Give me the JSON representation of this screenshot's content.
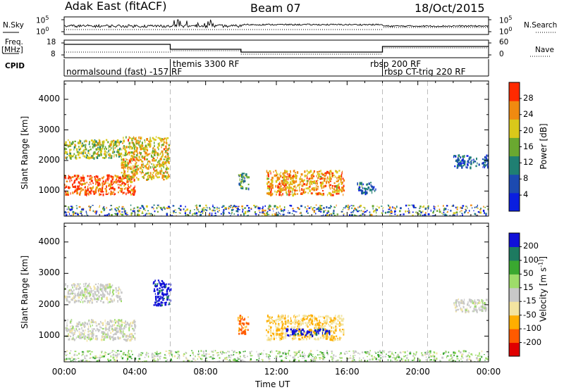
{
  "header": {
    "radar": "Adak East (fitACF)",
    "beam": "Beam 07",
    "date": "18/Oct/2015"
  },
  "aux_labels": {
    "nsky": "N.Sky",
    "nsearch": "N.Search",
    "freq": "Freq.",
    "freq_unit": "[MHz]",
    "nave": "Nave",
    "cpid": "CPID",
    "nsky_top": "10^5",
    "nsky_bottom": "10^0",
    "nsearch_top": "10^5",
    "nsearch_bottom": "10^0",
    "freq_top": "18",
    "freq_bottom": "8",
    "nave_top": "60",
    "nave_bottom": "0"
  },
  "cpid_segments": [
    {
      "label": "normalsound (fast) -157 RF",
      "start": "00:00"
    },
    {
      "label": "themis 3300 RF",
      "start": "06:00"
    },
    {
      "label": "rbsp 200 RF",
      "start": "18:00"
    },
    {
      "label": "rbsp CT-trig 220 RF",
      "start": "18:00"
    }
  ],
  "chart_data": [
    {
      "type": "heatmap",
      "name": "power",
      "xlabel": "",
      "ylabel": "Slant Range [km]",
      "x_range": [
        "00:00",
        "24:00"
      ],
      "ylim": [
        180,
        4600
      ],
      "yticks": [
        1000,
        2000,
        3000,
        4000
      ],
      "colorbar": {
        "label": "Power [dB]",
        "range": [
          0,
          32
        ],
        "ticks": [
          4,
          8,
          12,
          16,
          20,
          24,
          28
        ],
        "colors": [
          "#0a1ee0",
          "#1c4ab0",
          "#1f7f72",
          "#6aa830",
          "#d9c81a",
          "#f08a10",
          "#ff2a00"
        ]
      },
      "scatter_regions": [
        {
          "t": [
            0.0,
            4.0
          ],
          "r": [
            900,
            1550
          ],
          "value": 28
        },
        {
          "t": [
            0.0,
            3.2
          ],
          "r": [
            2100,
            2700
          ],
          "value": 18
        },
        {
          "t": [
            3.2,
            5.9
          ],
          "r": [
            1400,
            2800
          ],
          "value": 22
        },
        {
          "t": [
            9.8,
            10.4
          ],
          "r": [
            1100,
            1600
          ],
          "value": 14
        },
        {
          "t": [
            11.4,
            15.8
          ],
          "r": [
            900,
            1700
          ],
          "value": 24
        },
        {
          "t": [
            16.5,
            17.6
          ],
          "r": [
            950,
            1300
          ],
          "value": 8
        },
        {
          "t": [
            0.0,
            24.0
          ],
          "r": [
            180,
            560
          ],
          "value": 12
        },
        {
          "t": [
            22.0,
            24.0
          ],
          "r": [
            1800,
            2200
          ],
          "value": 8
        }
      ]
    },
    {
      "type": "heatmap",
      "name": "velocity",
      "xlabel": "Time UT",
      "ylabel": "Slant Range [km]",
      "x_range": [
        "00:00",
        "24:00"
      ],
      "xticks": [
        "00:00",
        "04:00",
        "08:00",
        "12:00",
        "16:00",
        "20:00",
        "00:00"
      ],
      "ylim": [
        180,
        4600
      ],
      "yticks": [
        1000,
        2000,
        3000,
        4000
      ],
      "colorbar": {
        "label": "Velocity [m s-1]",
        "range": [
          -250,
          250
        ],
        "ticks": [
          200,
          100,
          50,
          15,
          -15,
          -50,
          -100,
          -200
        ],
        "colors": [
          "#e00000",
          "#ff5a00",
          "#ffae00",
          "#f3e4a0",
          "#c8c8c8",
          "#9edc6a",
          "#3aa830",
          "#1d7a60",
          "#1010d8"
        ]
      },
      "scatter_regions": [
        {
          "t": [
            0.0,
            4.0
          ],
          "r": [
            900,
            1550
          ],
          "value": 0
        },
        {
          "t": [
            0.0,
            3.2
          ],
          "r": [
            2100,
            2700
          ],
          "value": 0
        },
        {
          "t": [
            5.0,
            6.0
          ],
          "r": [
            2000,
            2800
          ],
          "value": 220
        },
        {
          "t": [
            9.8,
            10.4
          ],
          "r": [
            1100,
            1700
          ],
          "value": -150
        },
        {
          "t": [
            11.4,
            15.8
          ],
          "r": [
            900,
            1700
          ],
          "value": -80
        },
        {
          "t": [
            12.5,
            15.0
          ],
          "r": [
            1050,
            1250
          ],
          "value": 220
        },
        {
          "t": [
            0.0,
            24.0
          ],
          "r": [
            180,
            560
          ],
          "value": 40
        },
        {
          "t": [
            22.0,
            24.0
          ],
          "r": [
            1800,
            2200
          ],
          "value": 0
        }
      ]
    }
  ]
}
